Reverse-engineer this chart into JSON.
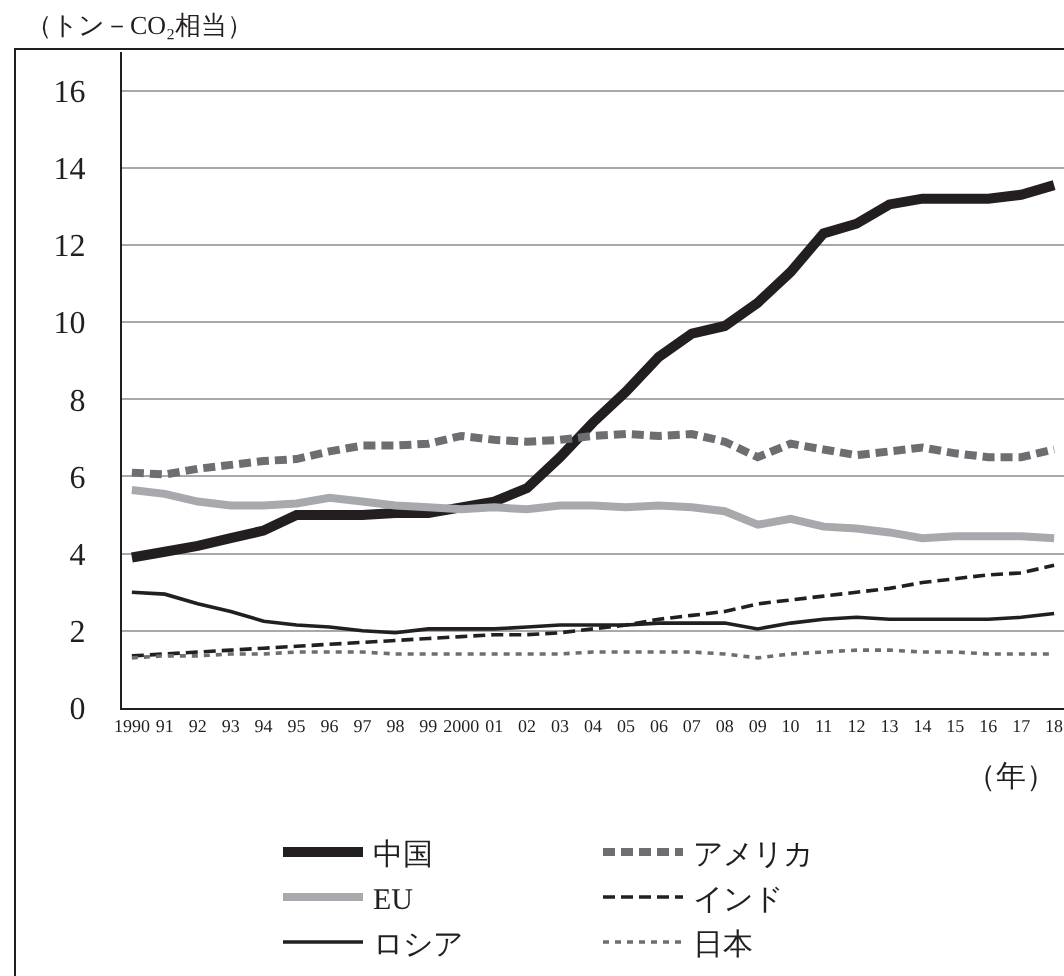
{
  "chart_data": {
    "type": "line",
    "ylabel": "（トン－CO₂相当）",
    "xlabel": "（年）",
    "categories": [
      "1990",
      "91",
      "92",
      "93",
      "94",
      "95",
      "96",
      "97",
      "98",
      "99",
      "2000",
      "01",
      "02",
      "03",
      "04",
      "05",
      "06",
      "07",
      "08",
      "09",
      "10",
      "11",
      "12",
      "13",
      "14",
      "15",
      "16",
      "17",
      "18"
    ],
    "ylim": [
      0,
      17
    ],
    "yticks": [
      0,
      2,
      4,
      6,
      8,
      10,
      12,
      14,
      16
    ],
    "grid": "y",
    "legend": "bottom",
    "marker": "none",
    "series": [
      {
        "name": "中国",
        "color": "#231f20",
        "line_style": "solid",
        "values": [
          3.9,
          4.05,
          4.2,
          4.4,
          4.6,
          5.0,
          5.0,
          5.0,
          5.05,
          5.05,
          5.2,
          5.35,
          5.7,
          6.5,
          7.4,
          8.2,
          9.1,
          9.7,
          9.9,
          10.5,
          11.3,
          12.3,
          12.55,
          13.05,
          13.2,
          13.2,
          13.2,
          13.3,
          13.55
        ]
      },
      {
        "name": "アメリカ",
        "color": "#6d6e71",
        "line_style": "dashed",
        "values": [
          6.1,
          6.05,
          6.2,
          6.3,
          6.4,
          6.45,
          6.65,
          6.8,
          6.8,
          6.85,
          7.05,
          6.95,
          6.9,
          6.95,
          7.05,
          7.1,
          7.05,
          7.1,
          6.9,
          6.5,
          6.85,
          6.7,
          6.55,
          6.65,
          6.75,
          6.6,
          6.5,
          6.5,
          6.7
        ]
      },
      {
        "name": "EU",
        "color": "#a7a9ac",
        "line_style": "solid",
        "values": [
          5.65,
          5.55,
          5.35,
          5.25,
          5.25,
          5.3,
          5.45,
          5.35,
          5.25,
          5.2,
          5.15,
          5.2,
          5.15,
          5.25,
          5.25,
          5.2,
          5.25,
          5.2,
          5.1,
          4.75,
          4.9,
          4.7,
          4.65,
          4.55,
          4.4,
          4.45,
          4.45,
          4.45,
          4.4
        ]
      },
      {
        "name": "インド",
        "color": "#231f20",
        "line_style": "dashed",
        "values": [
          1.35,
          1.4,
          1.45,
          1.5,
          1.55,
          1.6,
          1.65,
          1.7,
          1.75,
          1.8,
          1.85,
          1.9,
          1.9,
          1.95,
          2.05,
          2.15,
          2.3,
          2.4,
          2.5,
          2.7,
          2.8,
          2.9,
          3.0,
          3.1,
          3.25,
          3.35,
          3.45,
          3.5,
          3.7
        ]
      },
      {
        "name": "ロシア",
        "color": "#231f20",
        "line_style": "solid",
        "values": [
          3.0,
          2.95,
          2.7,
          2.5,
          2.25,
          2.15,
          2.1,
          2.0,
          1.95,
          2.05,
          2.05,
          2.05,
          2.1,
          2.15,
          2.15,
          2.15,
          2.2,
          2.2,
          2.2,
          2.05,
          2.2,
          2.3,
          2.35,
          2.3,
          2.3,
          2.3,
          2.3,
          2.35,
          2.45
        ]
      },
      {
        "name": "日本",
        "color": "#6d6e71",
        "line_style": "dotted",
        "values": [
          1.3,
          1.35,
          1.35,
          1.4,
          1.4,
          1.45,
          1.45,
          1.45,
          1.4,
          1.4,
          1.4,
          1.4,
          1.4,
          1.4,
          1.45,
          1.45,
          1.45,
          1.45,
          1.4,
          1.3,
          1.4,
          1.45,
          1.5,
          1.5,
          1.45,
          1.45,
          1.4,
          1.4,
          1.4
        ]
      }
    ]
  }
}
